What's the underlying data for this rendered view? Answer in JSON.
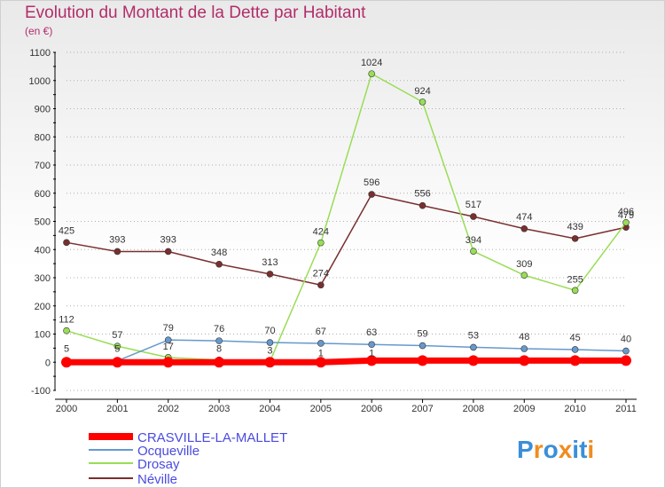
{
  "header": {
    "title": "Evolution du Montant de la Dette par Habitant",
    "unit": "(en €)"
  },
  "logo": {
    "text": "Proxiti",
    "letters": [
      "P",
      "r",
      "o",
      "x",
      "i",
      "t",
      "i"
    ]
  },
  "colors": {
    "title": "#b22d6b",
    "legend_text": "#4a4ae0",
    "axis": "#000000",
    "grid": "#b0b0b0"
  },
  "chart_data": {
    "type": "line",
    "title": "Evolution du Montant de la Dette par Habitant",
    "subtitle": "(en €)",
    "xlabel": "",
    "ylabel": "",
    "ylim": [
      -100,
      1100
    ],
    "yticks": [
      -100,
      0,
      100,
      200,
      300,
      400,
      500,
      600,
      700,
      800,
      900,
      1000,
      1100
    ],
    "categories": [
      "2000",
      "2001",
      "2002",
      "2003",
      "2004",
      "2005",
      "2006",
      "2007",
      "2008",
      "2009",
      "2010",
      "2011"
    ],
    "grid": "dotted horizontal",
    "legend_position": "bottom-left",
    "series": [
      {
        "name": "CRASVILLE-LA-MALLET",
        "color": "#ff0000",
        "values": [
          0,
          0,
          0,
          0,
          0,
          0,
          6,
          6,
          6,
          6,
          6,
          6
        ],
        "labels": [
          "",
          "",
          "",
          "",
          "",
          "",
          "",
          "",
          "",
          "",
          "",
          ""
        ]
      },
      {
        "name": "Ocqueville",
        "color": "#6699cc",
        "values": [
          5,
          5,
          79,
          76,
          70,
          67,
          63,
          59,
          53,
          48,
          45,
          40
        ],
        "labels": [
          "5",
          "5",
          "79",
          "76",
          "70",
          "67",
          "63",
          "59",
          "53",
          "48",
          "45",
          "40"
        ]
      },
      {
        "name": "Drosay",
        "color": "#99dd55",
        "values": [
          112,
          57,
          17,
          8,
          3,
          424,
          1024,
          924,
          394,
          309,
          255,
          496
        ],
        "labels": [
          "112",
          "57",
          "17",
          "8",
          "3",
          "424",
          "1024",
          "924",
          "394",
          "309",
          "255",
          "496"
        ]
      },
      {
        "name": "Néville",
        "color": "#7a2f2f",
        "values": [
          425,
          393,
          393,
          348,
          313,
          274,
          596,
          556,
          517,
          474,
          439,
          479
        ],
        "labels": [
          "425",
          "393",
          "393",
          "348",
          "313",
          "274",
          "596",
          "556",
          "517",
          "474",
          "439",
          "479"
        ]
      }
    ],
    "extra_labels": [
      "1",
      "1"
    ]
  }
}
